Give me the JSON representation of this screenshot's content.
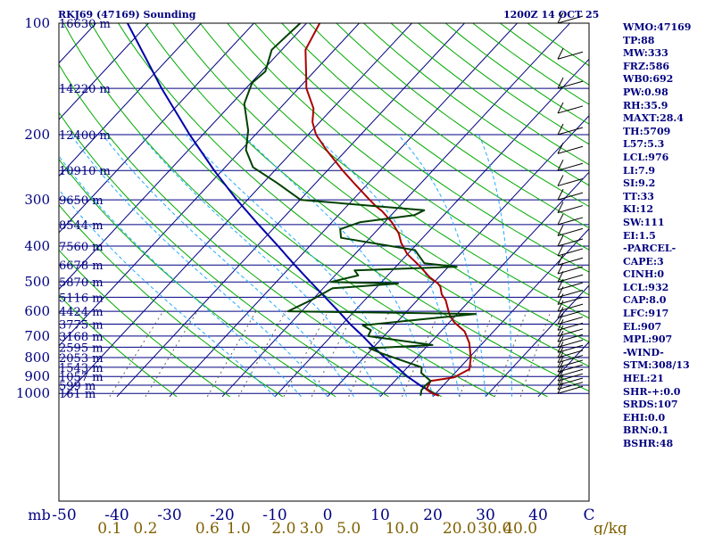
{
  "header": {
    "station": "RKJ69 (47169) Sounding",
    "time": "1200Z 14 OCT 25"
  },
  "indices": [
    "WMO:47169",
    "TP:88",
    "MW:333",
    "FRZ:586",
    "WB0:692",
    "PW:0.98",
    "RH:35.9",
    "MAXT:28.4",
    "TH:5709",
    "L57:5.3",
    "LCL:976",
    "LI:7.9",
    "SI:9.2",
    "TT:33",
    "KI:12",
    "SW:111",
    "EI:1.5",
    "-PARCEL-",
    "CAPE:3",
    "CINH:0",
    "LCL:932",
    "CAP:8.0",
    "LFC:917",
    "EL:907",
    "MPL:907",
    "-WIND-",
    "STM:308/13",
    "HEL:21",
    "SHR-+:0.0",
    "SRDS:107",
    "EHI:0.0",
    "BRN:0.1",
    "BSHR:48"
  ],
  "colors": {
    "background": "#ffffff",
    "frame": "#000000",
    "isobar": "#000080",
    "isotherm": "#000080",
    "dry_adiabat": "#00aa00",
    "moist_adiabat": "#22aaff",
    "mixing_ratio": "#606060",
    "temperature": "#aa0000",
    "dewpoint": "#004000",
    "parcel": "#0000aa",
    "text": "#000080",
    "mixing_label": "#806000",
    "wind": "#000000"
  },
  "chart_data": {
    "type": "skew-t",
    "pressure_axis_label": "mb",
    "mixing_ratio_unit": "g/kg",
    "pressure_ticks": [
      "100",
      "200",
      "300",
      "400",
      "500",
      "600",
      "700",
      "800",
      "900",
      "1000"
    ],
    "pressure_values": [
      100,
      200,
      300,
      400,
      500,
      600,
      700,
      800,
      900,
      1000
    ],
    "temperature_ticks": [
      "-50",
      "-40",
      "-30",
      "-20",
      "-10",
      "0",
      "10",
      "20",
      "30",
      "40",
      "C"
    ],
    "temperature_values": [
      -50,
      -40,
      -30,
      -20,
      -10,
      0,
      10,
      20,
      30,
      40
    ],
    "mixing_ratio_ticks": [
      "0.1",
      "0.2",
      "0.6",
      "1.0",
      "2.0",
      "3.0",
      "5.0",
      "10.0",
      "20.0",
      "30.0",
      "40.0"
    ],
    "mixing_ratio_values": [
      0.1,
      0.2,
      0.6,
      1.0,
      2.0,
      3.0,
      5.0,
      10.0,
      20.0,
      30.0,
      40.0
    ],
    "height_levels": [
      {
        "p": 100,
        "label": "16630 m"
      },
      {
        "p": 150,
        "label": "14220 m"
      },
      {
        "p": 200,
        "label": "12400 m"
      },
      {
        "p": 250,
        "label": "10910 m"
      },
      {
        "p": 300,
        "label": "9650 m"
      },
      {
        "p": 350,
        "label": "8544 m"
      },
      {
        "p": 400,
        "label": "7560 m"
      },
      {
        "p": 450,
        "label": "6678 m"
      },
      {
        "p": 500,
        "label": "5870 m"
      },
      {
        "p": 550,
        "label": "5116 m"
      },
      {
        "p": 600,
        "label": "4424 m"
      },
      {
        "p": 650,
        "label": "3775 m"
      },
      {
        "p": 700,
        "label": "3168 m"
      },
      {
        "p": 750,
        "label": "2595 m"
      },
      {
        "p": 800,
        "label": "2053 m"
      },
      {
        "p": 850,
        "label": "1543 m"
      },
      {
        "p": 900,
        "label": "1057 m"
      },
      {
        "p": 950,
        "label": "599 m"
      },
      {
        "p": 1000,
        "label": "161 m"
      }
    ],
    "temperature_profile": [
      [
        1014,
        21
      ],
      [
        1005,
        19.8
      ],
      [
        990,
        18.6
      ],
      [
        975,
        17.5
      ],
      [
        925,
        16.8
      ],
      [
        905,
        20.6
      ],
      [
        860,
        22.1
      ],
      [
        800,
        20.3
      ],
      [
        730,
        17.4
      ],
      [
        680,
        14.5
      ],
      [
        640,
        10.7
      ],
      [
        610,
        8.5
      ],
      [
        600,
        7.9
      ],
      [
        560,
        5.4
      ],
      [
        540,
        3.6
      ],
      [
        515,
        2.0
      ],
      [
        505,
        1.0
      ],
      [
        485,
        -1.8
      ],
      [
        455,
        -5.3
      ],
      [
        420,
        -10.1
      ],
      [
        392,
        -13.2
      ],
      [
        370,
        -15.3
      ],
      [
        345,
        -18.6
      ],
      [
        322,
        -22.4
      ],
      [
        312,
        -24.5
      ],
      [
        300,
        -26.8
      ],
      [
        270,
        -32.8
      ],
      [
        250,
        -37.1
      ],
      [
        220,
        -43.8
      ],
      [
        200,
        -48.5
      ],
      [
        185,
        -51.4
      ],
      [
        170,
        -53.6
      ],
      [
        150,
        -58.5
      ],
      [
        140,
        -60.5
      ],
      [
        118,
        -65.5
      ],
      [
        100,
        -67.5
      ]
    ],
    "dewpoint_profile": [
      [
        1014,
        17.5
      ],
      [
        980,
        16.7
      ],
      [
        950,
        16.6
      ],
      [
        925,
        16.8
      ],
      [
        880,
        13.6
      ],
      [
        850,
        12.7
      ],
      [
        780,
        2.7
      ],
      [
        755,
        -0.6
      ],
      [
        740,
        10.8
      ],
      [
        720,
        4.0
      ],
      [
        700,
        -3.0
      ],
      [
        675,
        -3.5
      ],
      [
        655,
        -5.9
      ],
      [
        630,
        4.6
      ],
      [
        610,
        13.5
      ],
      [
        600,
        -22.6
      ],
      [
        560,
        -20.2
      ],
      [
        520,
        -18.2
      ],
      [
        505,
        -6.6
      ],
      [
        500,
        -19.6
      ],
      [
        480,
        -15.6
      ],
      [
        465,
        -17.2
      ],
      [
        455,
        1.6
      ],
      [
        445,
        -5.2
      ],
      [
        410,
        -9.3
      ],
      [
        380,
        -25.5
      ],
      [
        360,
        -27.2
      ],
      [
        345,
        -24.7
      ],
      [
        330,
        -15.6
      ],
      [
        320,
        -14.6
      ],
      [
        300,
        -39.9
      ],
      [
        270,
        -47.4
      ],
      [
        245,
        -54.7
      ],
      [
        220,
        -59.1
      ],
      [
        195,
        -62.1
      ],
      [
        165,
        -67.6
      ],
      [
        145,
        -69.8
      ],
      [
        135,
        -69.3
      ],
      [
        118,
        -71.9
      ],
      [
        100,
        -71.2
      ]
    ],
    "parcel_profile": [
      [
        1014,
        21.0
      ],
      [
        1000,
        19.5
      ],
      [
        975,
        17.6
      ],
      [
        950,
        15.5
      ],
      [
        925,
        13.6
      ],
      [
        900,
        11.6
      ],
      [
        850,
        8.0
      ],
      [
        800,
        4.0
      ],
      [
        750,
        0.0
      ],
      [
        700,
        -4.0
      ],
      [
        650,
        -8.5
      ],
      [
        600,
        -13.0
      ],
      [
        550,
        -18.0
      ],
      [
        500,
        -23.5
      ],
      [
        450,
        -29.5
      ],
      [
        400,
        -36.0
      ],
      [
        350,
        -43.5
      ],
      [
        300,
        -52.0
      ],
      [
        250,
        -61.5
      ],
      [
        200,
        -72.5
      ],
      [
        150,
        -86.0
      ],
      [
        100,
        -104.0
      ]
    ]
  }
}
